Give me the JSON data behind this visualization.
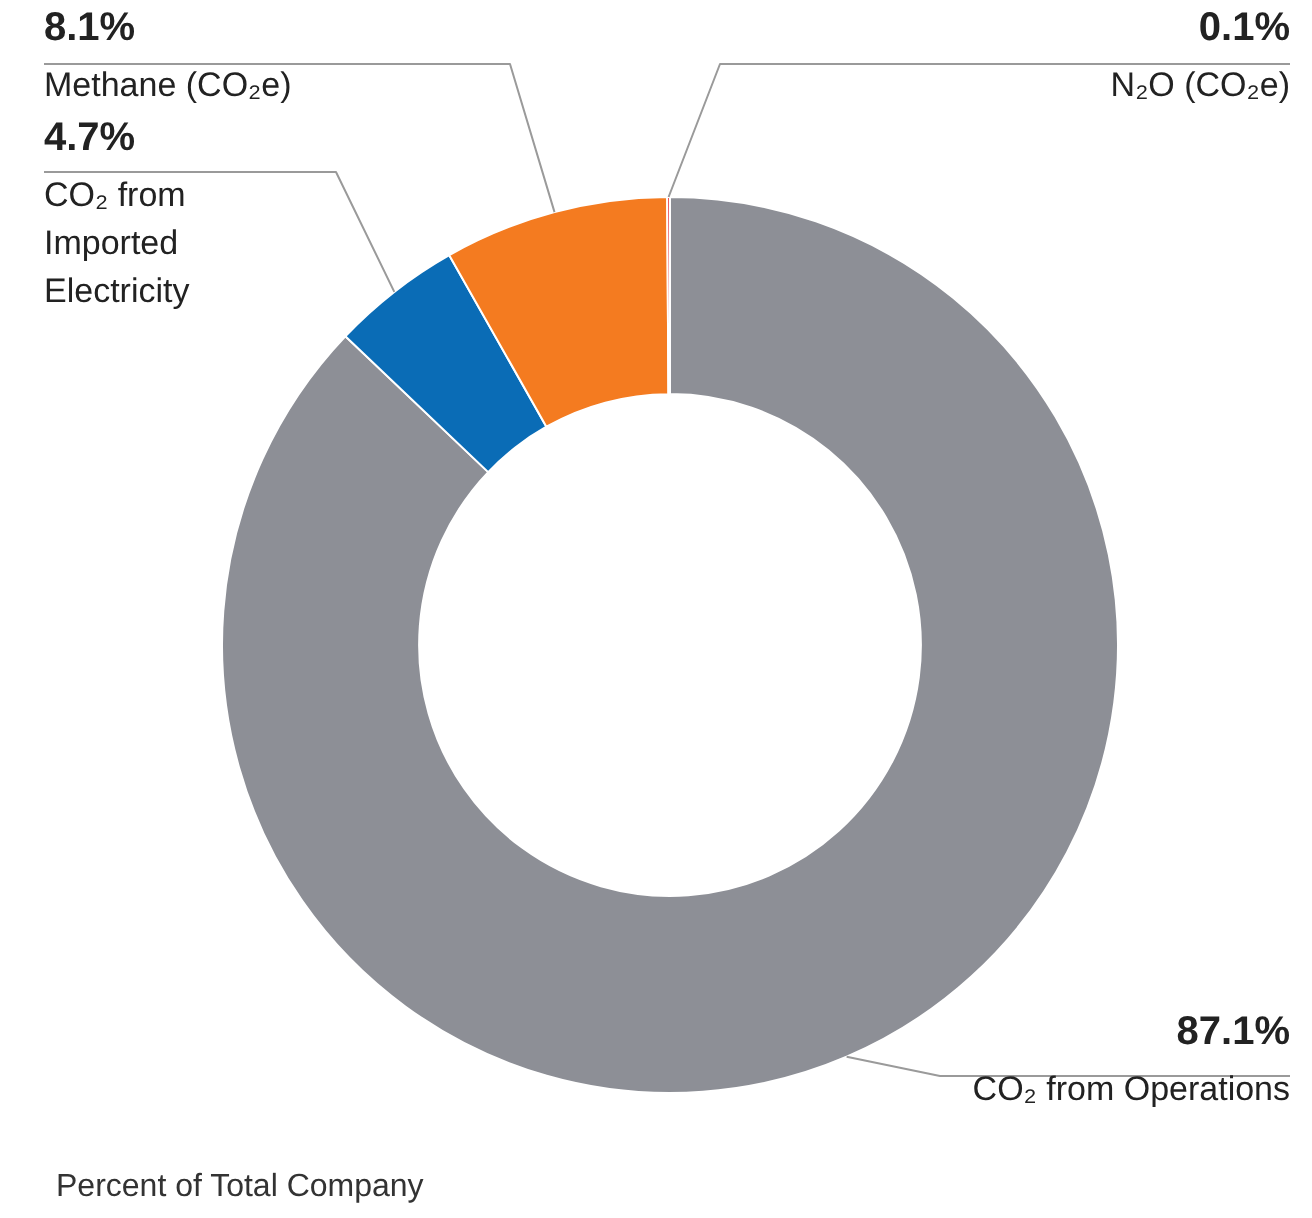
{
  "chart_data": {
    "type": "donut",
    "categories": [
      "CO₂ from Operations",
      "CO₂ from Imported Electricity",
      "Methane (CO₂e)",
      "N₂O (CO₂e)"
    ],
    "values": [
      87.1,
      4.7,
      8.1,
      0.1
    ],
    "colors": [
      "#8d8f96",
      "#0a6cb6",
      "#f47b20",
      "#e4313c"
    ],
    "value_labels": [
      "87.1%",
      "4.7%",
      "8.1%",
      "0.1%"
    ],
    "legend": false,
    "annotations": [
      "Percent of Total Company"
    ]
  }
}
